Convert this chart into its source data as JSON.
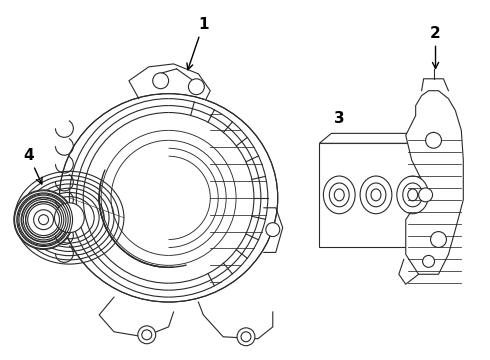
{
  "background_color": "#ffffff",
  "line_color": "#2a2a2a",
  "line_width": 0.8,
  "label_fontsize": 11,
  "label_fontweight": "bold",
  "figsize": [
    4.9,
    3.6
  ],
  "dpi": 100,
  "xlim": [
    0,
    490
  ],
  "ylim": [
    0,
    360
  ]
}
